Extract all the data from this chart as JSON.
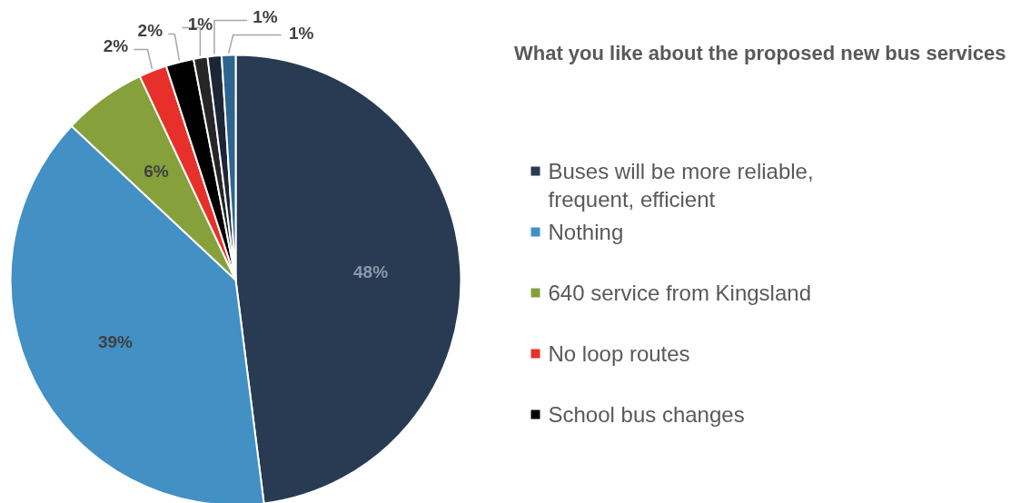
{
  "chart_data": {
    "type": "pie",
    "title": "What you like about the proposed new bus services",
    "categories": [
      "Buses will be more reliable, frequent, efficient",
      "Nothing",
      "640 service from Kingsland",
      "No loop routes",
      "School bus changes",
      null,
      null,
      null
    ],
    "values": [
      48,
      39,
      6,
      2,
      2,
      1,
      1,
      1
    ],
    "colors": [
      "#283b52",
      "#4290c4",
      "#86a03c",
      "#e8302a",
      "#000000",
      "#262626",
      "#1c2636",
      "#2e6590"
    ],
    "value_labels": [
      "48%",
      "39%",
      "6%",
      "2%",
      "2%",
      "1%",
      "1%",
      "1%"
    ],
    "legend": "right"
  }
}
